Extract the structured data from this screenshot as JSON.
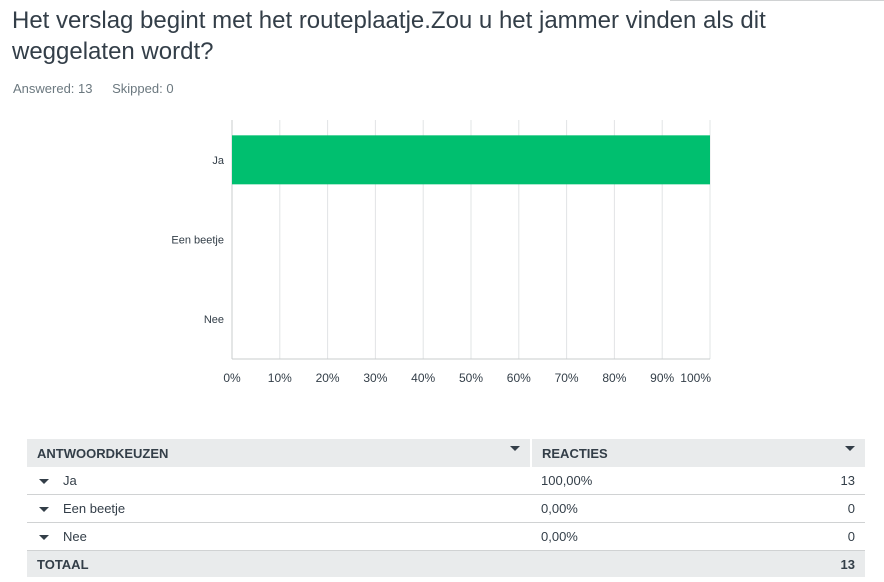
{
  "question": {
    "title": "Het verslag begint met het routeplaatje.Zou u het jammer vinden als dit weggelaten wordt?",
    "answered": "Answered: 13",
    "skipped": "Skipped: 0"
  },
  "colors": {
    "bar": "#00bf6f",
    "grid": "#e2e4e5",
    "axis": "#c9ccce"
  },
  "chart_data": {
    "type": "bar",
    "orientation": "horizontal",
    "categories": [
      "Ja",
      "Een beetje",
      "Nee"
    ],
    "values": [
      100,
      0,
      0
    ],
    "xlim": [
      0,
      100
    ],
    "xticks": [
      "0%",
      "10%",
      "20%",
      "30%",
      "40%",
      "50%",
      "60%",
      "70%",
      "80%",
      "90%",
      "100%"
    ],
    "grid": true
  },
  "table": {
    "headers": {
      "choice": "ANTWOORDKEUZEN",
      "responses": "REACTIES"
    },
    "rows": [
      {
        "label": "Ja",
        "percent": "100,00%",
        "count": "13"
      },
      {
        "label": "Een beetje",
        "percent": "0,00%",
        "count": "0"
      },
      {
        "label": "Nee",
        "percent": "0,00%",
        "count": "0"
      }
    ],
    "total": {
      "label": "TOTAAL",
      "count": "13"
    }
  }
}
